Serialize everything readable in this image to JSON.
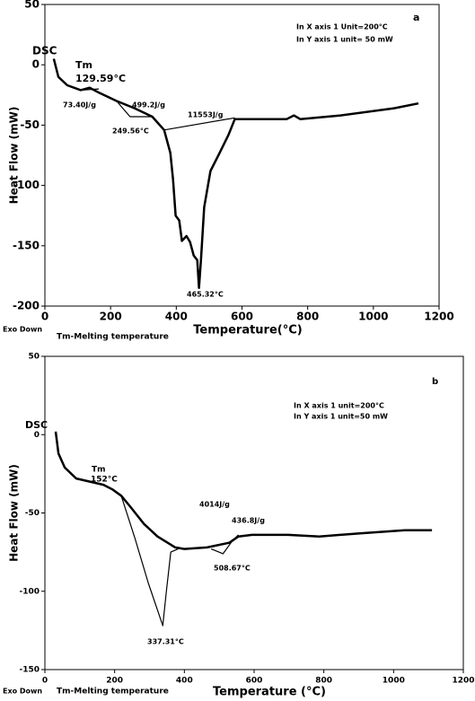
{
  "chart_data": [
    {
      "type": "line",
      "x_label": "Temperature(°C)",
      "y_label": "Heat Flow (mW)",
      "xlim": [
        0,
        1200
      ],
      "ylim": [
        -200,
        50
      ],
      "xticks": [
        0,
        200,
        400,
        600,
        800,
        1000,
        1200
      ],
      "yticks": [
        50,
        0,
        -50,
        -100,
        -150,
        -200
      ],
      "color": "#000000",
      "x": [
        27,
        41,
        68,
        109,
        136,
        164,
        218,
        273,
        327,
        363,
        382,
        390,
        398,
        409,
        417,
        431,
        442,
        453,
        464,
        469,
        475,
        485,
        504,
        532,
        559,
        578,
        627,
        736,
        758,
        777,
        900,
        1063,
        1137
      ],
      "values": [
        5,
        -10,
        -17,
        -21,
        -19,
        -23,
        -30,
        -36,
        -43,
        -54,
        -73,
        -95,
        -125,
        -129,
        -146,
        -142,
        -147,
        -158,
        -162,
        -185,
        -162,
        -118,
        -88,
        -73,
        -58,
        -45,
        -45,
        -45,
        -42,
        -45,
        -42,
        -36,
        -32
      ],
      "baselines": [
        {
          "x": [
            109,
            164
          ],
          "values": [
            -21,
            -20
          ]
        },
        {
          "x": [
            218,
            259,
            327
          ],
          "values": [
            -30,
            -43,
            -43
          ]
        },
        {
          "x": [
            363,
            578
          ],
          "values": [
            -54,
            -44
          ]
        }
      ],
      "annotations": [
        "DSC",
        "Tm",
        "129.59°C",
        "73.40J/g",
        "499.2J/g",
        "249.56°C",
        "11553J/g",
        "465.32°C",
        "In X axis 1 Unit=200°C",
        "In Y axis 1 unit= 50 mW",
        "a",
        "Exo Down",
        "Tm-Melting temperature"
      ]
    },
    {
      "type": "line",
      "x_label": "Temperature (°C)",
      "y_label": "Heat Flow (mW)",
      "xlim": [
        0,
        1200
      ],
      "ylim": [
        -150,
        50
      ],
      "xticks": [
        0,
        200,
        400,
        600,
        800,
        1000,
        1200
      ],
      "yticks": [
        50,
        0,
        -50,
        -100,
        -150
      ],
      "color": "#000000",
      "x": [
        31,
        39,
        57,
        90,
        129,
        168,
        194,
        219,
        245,
        284,
        323,
        374,
        400,
        465,
        529,
        555,
        594,
        697,
        787,
        903,
        1032,
        1110
      ],
      "values": [
        2,
        -12,
        -21,
        -28,
        -30,
        -32,
        -35,
        -39,
        -46,
        -57,
        -65,
        -72,
        -73,
        -72,
        -69,
        -65,
        -64,
        -64,
        -65,
        -63,
        -61,
        -61
      ],
      "baselines": [
        {
          "x": [
            219,
            258,
            297,
            323,
            338,
            348,
            361,
            382
          ],
          "values": [
            -39,
            -66,
            -95,
            -112,
            -122,
            -101,
            -75,
            -73
          ]
        },
        {
          "x": [
            477,
            511,
            537,
            555
          ],
          "values": [
            -73,
            -76,
            -68,
            -64
          ]
        }
      ],
      "annotations": [
        "DSC",
        "Tm",
        "152°C",
        "4014J/g",
        "436.8J/g",
        "508.67°C",
        "337.31°C",
        "In X axis 1 unit=200°C",
        "In Y axis 1 unit=50 mW",
        "b",
        "Exo Down",
        "Tm-Melting temperature"
      ]
    }
  ]
}
